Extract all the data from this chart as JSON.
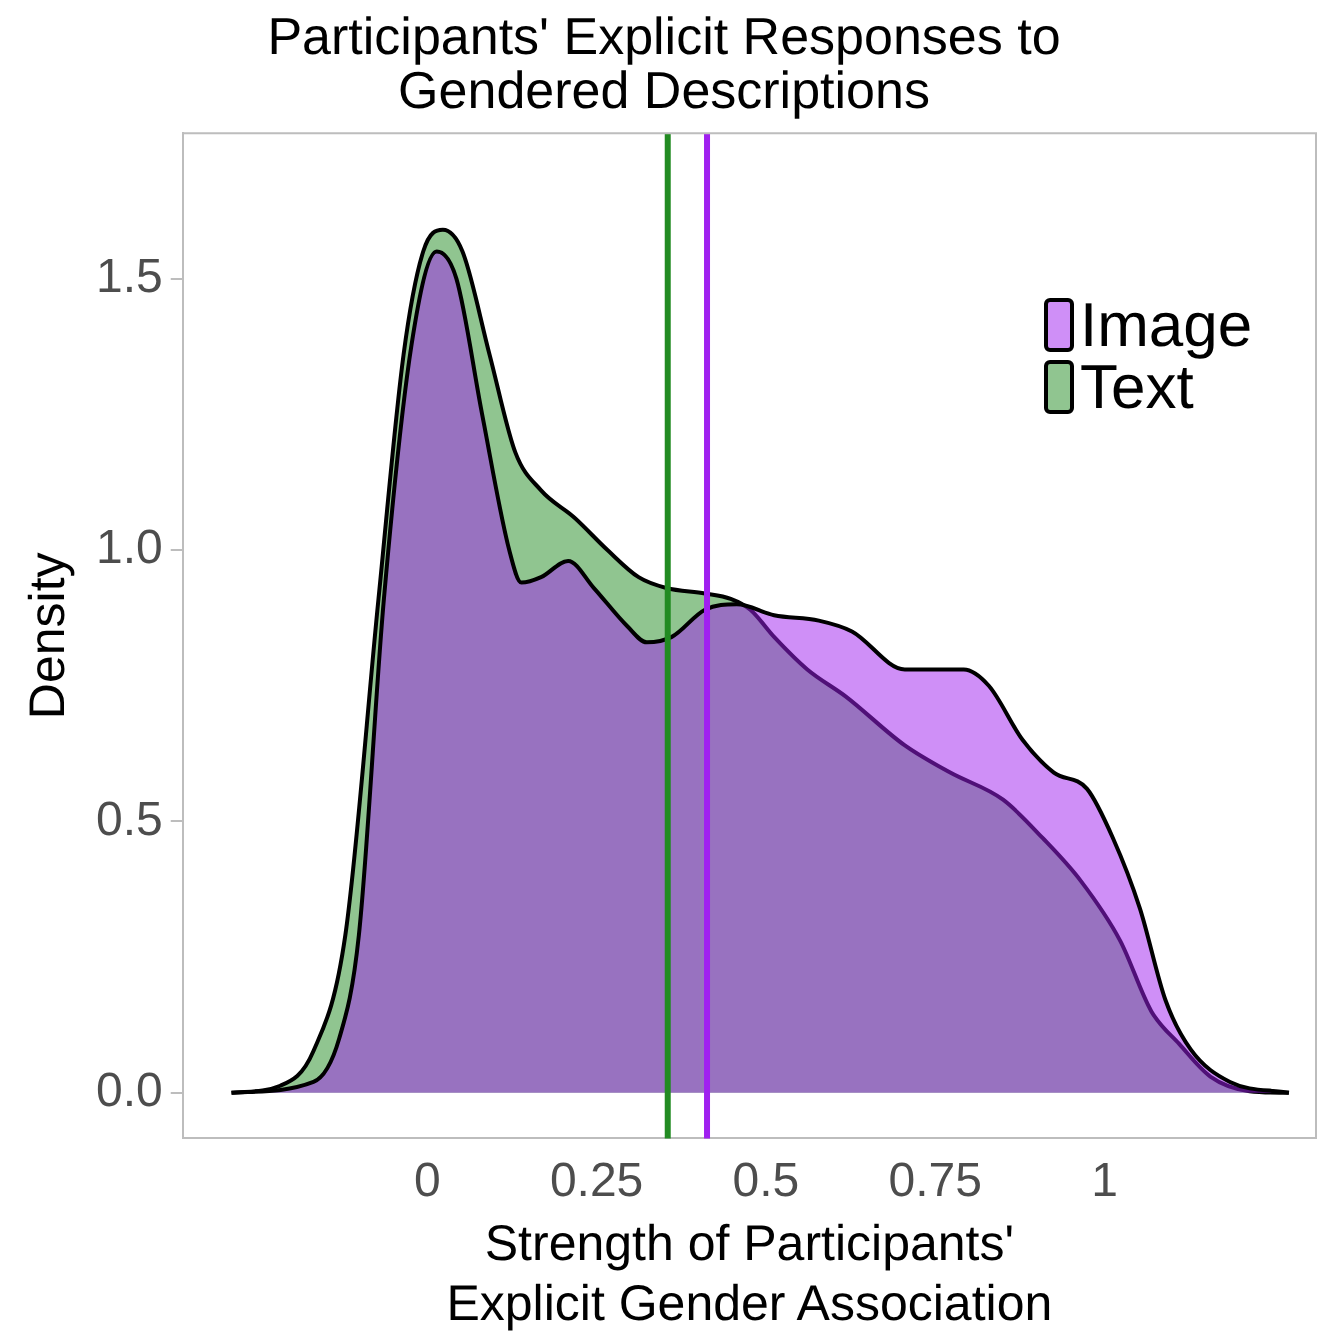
{
  "chart_data": {
    "type": "area",
    "title": "Participants' Explicit Responses to\nGendered Descriptions",
    "xlabel": "Strength of Participants'\nExplicit Gender Association",
    "ylabel": "Density",
    "xlim": [
      -0.361,
      1.312
    ],
    "ylim": [
      -0.084,
      1.768
    ],
    "xticks": [
      0,
      0.25,
      0.5,
      0.75,
      1
    ],
    "yticks": [
      {
        "value": 0,
        "label": "0.0"
      },
      {
        "value": 0.5,
        "label": "0.5"
      },
      {
        "value": 1,
        "label": "1.0"
      },
      {
        "value": 1.5,
        "label": "1.5"
      }
    ],
    "grid": false,
    "legend": "top right",
    "series": [
      {
        "name": "Image",
        "color": "#a020f0",
        "x": [
          -0.289,
          -0.168,
          -0.13,
          -0.101,
          -0.064,
          -0.023,
          0.014,
          0.043,
          0.081,
          0.121,
          0.139,
          0.168,
          0.208,
          0.246,
          0.295,
          0.324,
          0.361,
          0.41,
          0.457,
          0.512,
          0.578,
          0.627,
          0.705,
          0.743,
          0.792,
          0.829,
          0.879,
          0.925,
          0.974,
          1.012,
          1.052,
          1.09,
          1.127,
          1.185,
          1.272
        ],
        "values": [
          0,
          0.02,
          0.1,
          0.29,
          0.91,
          1.38,
          1.55,
          1.5,
          1.25,
          1.0,
          0.94,
          0.95,
          0.98,
          0.93,
          0.86,
          0.83,
          0.84,
          0.89,
          0.9,
          0.88,
          0.87,
          0.85,
          0.78,
          0.78,
          0.78,
          0.75,
          0.65,
          0.59,
          0.56,
          0.47,
          0.34,
          0.17,
          0.08,
          0.02,
          0
        ]
      },
      {
        "name": "Text",
        "color": "#228b22",
        "x": [
          -0.289,
          -0.217,
          -0.168,
          -0.121,
          -0.072,
          -0.035,
          -0.006,
          0.023,
          0.052,
          0.092,
          0.13,
          0.168,
          0.217,
          0.266,
          0.312,
          0.353,
          0.41,
          0.448,
          0.477,
          0.512,
          0.561,
          0.618,
          0.705,
          0.772,
          0.85,
          0.908,
          0.965,
          1.023,
          1.069,
          1.11,
          1.156,
          1.214,
          1.272
        ],
        "values": [
          0,
          0.013,
          0.077,
          0.29,
          0.91,
          1.36,
          1.55,
          1.59,
          1.55,
          1.36,
          1.18,
          1.11,
          1.06,
          1.0,
          0.95,
          0.93,
          0.92,
          0.91,
          0.89,
          0.84,
          0.78,
          0.73,
          0.64,
          0.59,
          0.54,
          0.47,
          0.39,
          0.28,
          0.15,
          0.09,
          0.03,
          0.003,
          0
        ]
      }
    ],
    "ref_lines": [
      {
        "axis": "x",
        "value": 0.355,
        "color": "#228b22"
      },
      {
        "axis": "x",
        "value": 0.413,
        "color": "#a020f0"
      }
    ]
  }
}
